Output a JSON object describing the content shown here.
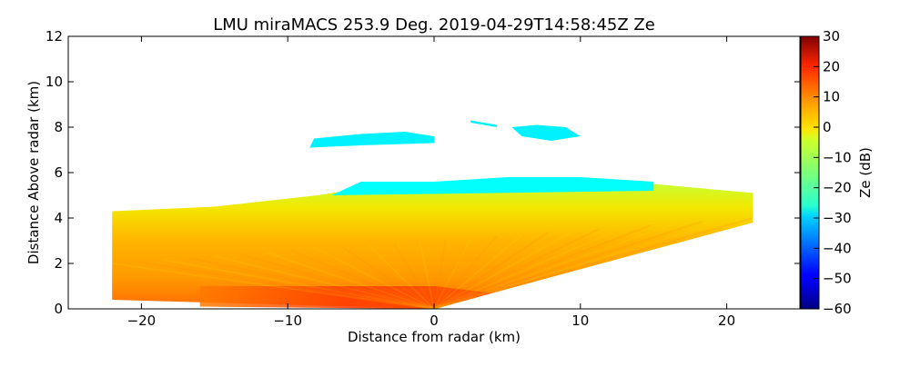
{
  "chart_data": {
    "type": "heatmap",
    "title": "LMU miraMACS 253.9 Deg. 2019-04-29T14:58:45Z  Ze",
    "xlabel": "Distance from radar (km)",
    "ylabel": "Distance Above radar  (km)",
    "xlim": [
      -25,
      25
    ],
    "ylim": [
      0,
      12
    ],
    "xticks": [
      -20,
      -10,
      0,
      10,
      20
    ],
    "xtick_labels": [
      "−20",
      "−10",
      "0",
      "10",
      "20"
    ],
    "yticks": [
      0,
      2,
      4,
      6,
      8,
      10,
      12
    ],
    "ytick_labels": [
      "0",
      "2",
      "4",
      "6",
      "8",
      "10",
      "12"
    ],
    "colorbar": {
      "label": "Ze (dB)",
      "range": [
        -60,
        30
      ],
      "ticks": [
        30,
        20,
        10,
        0,
        -10,
        -20,
        -30,
        -40,
        -50,
        -60
      ],
      "tick_labels": [
        "30",
        "20",
        "10",
        "0",
        "−10",
        "−20",
        "−30",
        "−40",
        "−50",
        "−60"
      ],
      "colormap": "jet"
    },
    "echo_regions": [
      {
        "name": "main-rain-layer",
        "ze_range": [
          -10,
          20
        ],
        "outline_km": [
          [
            -22,
            0.4
          ],
          [
            -22,
            4.3
          ],
          [
            -15,
            4.5
          ],
          [
            -8,
            5.0
          ],
          [
            -5,
            5.3
          ],
          [
            0,
            5.5
          ],
          [
            5,
            5.6
          ],
          [
            10,
            5.6
          ],
          [
            15,
            5.5
          ],
          [
            21.8,
            5.1
          ],
          [
            21.8,
            3.8
          ],
          [
            0,
            0
          ],
          [
            -22,
            0.4
          ]
        ]
      },
      {
        "name": "near-surface-strong-echo",
        "ze_range": [
          15,
          22
        ],
        "outline_km": [
          [
            -16,
            0.1
          ],
          [
            -16,
            1.0
          ],
          [
            0,
            1.0
          ],
          [
            4,
            0.7
          ],
          [
            0,
            0
          ],
          [
            -16,
            0.1
          ]
        ]
      },
      {
        "name": "melting-layer-top",
        "ze_range": [
          -30,
          -22
        ],
        "outline_km": [
          [
            -7,
            5.0
          ],
          [
            -5,
            5.6
          ],
          [
            0,
            5.6
          ],
          [
            5,
            5.8
          ],
          [
            10,
            5.8
          ],
          [
            15,
            5.6
          ],
          [
            15,
            5.2
          ],
          [
            -7,
            5.0
          ]
        ]
      },
      {
        "name": "cirrus-west",
        "ze_range": [
          -30,
          -25
        ],
        "outline_km": [
          [
            -8.5,
            7.1
          ],
          [
            -8.2,
            7.5
          ],
          [
            -5,
            7.7
          ],
          [
            -2,
            7.8
          ],
          [
            0,
            7.6
          ],
          [
            0,
            7.3
          ],
          [
            -5,
            7.2
          ],
          [
            -8.5,
            7.1
          ]
        ]
      },
      {
        "name": "cirrus-east-small",
        "ze_range": [
          -30,
          -25
        ],
        "outline_km": [
          [
            2.5,
            8.3
          ],
          [
            4.3,
            8.1
          ],
          [
            4.3,
            8.0
          ],
          [
            2.5,
            8.2
          ],
          [
            2.5,
            8.3
          ]
        ]
      },
      {
        "name": "cirrus-east",
        "ze_range": [
          -30,
          -25
        ],
        "outline_km": [
          [
            5.3,
            8.0
          ],
          [
            7,
            8.1
          ],
          [
            9,
            8.0
          ],
          [
            10,
            7.6
          ],
          [
            8,
            7.4
          ],
          [
            6,
            7.6
          ],
          [
            5.3,
            8.0
          ]
        ]
      }
    ]
  }
}
